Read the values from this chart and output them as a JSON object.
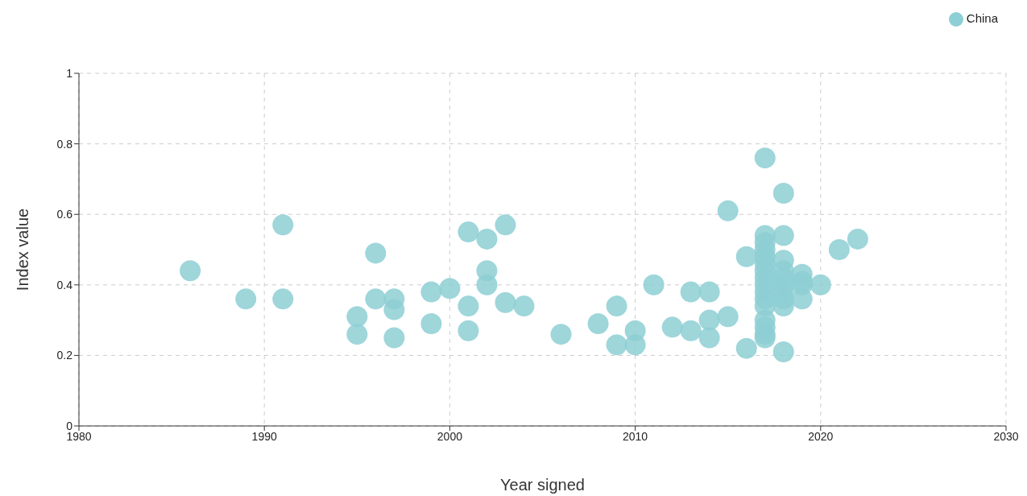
{
  "chart_data": {
    "type": "scatter",
    "xlabel": "Year signed",
    "ylabel": "Index value",
    "xlim": [
      1980,
      2030
    ],
    "xticks": [
      1980,
      1990,
      2000,
      2010,
      2020,
      2030
    ],
    "ylim": [
      0,
      1
    ],
    "yticks": [
      0,
      0.2,
      0.4,
      0.6,
      0.8,
      1
    ],
    "grid": true,
    "legend": "top right",
    "marker": "circle",
    "series": [
      {
        "name": "China",
        "color": "#8dcfd4",
        "x": [
          1986,
          1989,
          1991,
          1991,
          1995,
          1995,
          1996,
          1996,
          1997,
          1997,
          1997,
          1999,
          1999,
          2000,
          2001,
          2001,
          2001,
          2002,
          2002,
          2002,
          2003,
          2003,
          2004,
          2006,
          2008,
          2009,
          2009,
          2010,
          2010,
          2011,
          2012,
          2013,
          2013,
          2014,
          2014,
          2014,
          2015,
          2015,
          2016,
          2016,
          2017,
          2017,
          2017,
          2017,
          2017,
          2017,
          2017,
          2017,
          2017,
          2017,
          2017,
          2017,
          2017,
          2017,
          2017,
          2017,
          2018,
          2018,
          2018,
          2018,
          2018,
          2018,
          2018,
          2018,
          2018,
          2018,
          2019,
          2019,
          2019,
          2019,
          2020,
          2021,
          2022
        ],
        "values": [
          0.44,
          0.36,
          0.57,
          0.36,
          0.31,
          0.26,
          0.49,
          0.36,
          0.36,
          0.33,
          0.25,
          0.38,
          0.29,
          0.39,
          0.55,
          0.34,
          0.27,
          0.53,
          0.44,
          0.4,
          0.57,
          0.35,
          0.34,
          0.26,
          0.29,
          0.34,
          0.23,
          0.27,
          0.23,
          0.4,
          0.28,
          0.38,
          0.27,
          0.38,
          0.3,
          0.25,
          0.61,
          0.31,
          0.48,
          0.22,
          0.76,
          0.54,
          0.52,
          0.5,
          0.48,
          0.46,
          0.44,
          0.42,
          0.4,
          0.38,
          0.36,
          0.34,
          0.3,
          0.28,
          0.26,
          0.25,
          0.66,
          0.54,
          0.47,
          0.44,
          0.42,
          0.4,
          0.38,
          0.36,
          0.34,
          0.21,
          0.43,
          0.41,
          0.4,
          0.36,
          0.4,
          0.5,
          0.53
        ]
      }
    ]
  }
}
